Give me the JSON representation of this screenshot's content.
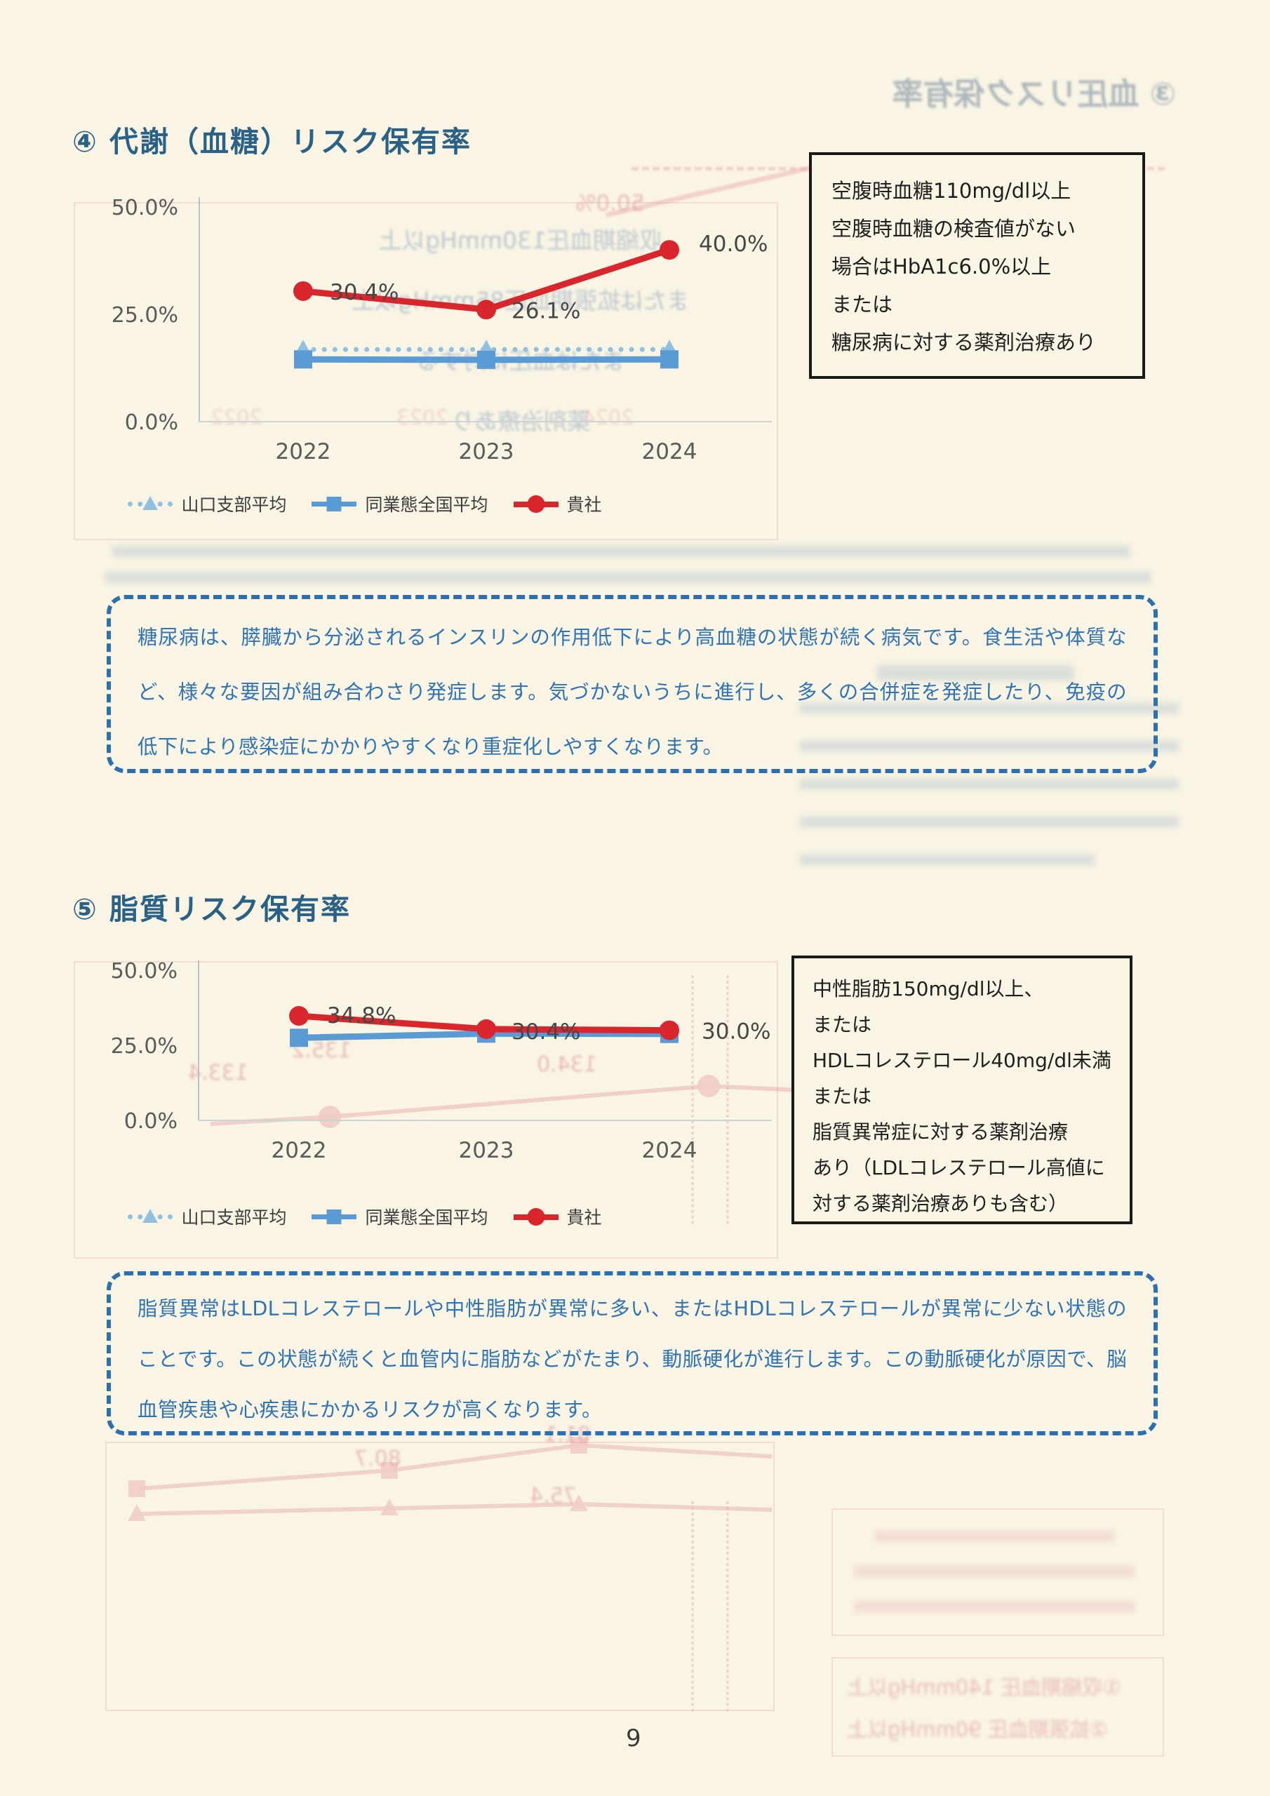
{
  "page": {
    "number": "9"
  },
  "titles": {
    "glucose": "④ 代謝（血糖）リスク保有率",
    "lipid": "⑤ 脂質リスク保有率"
  },
  "legend": {
    "items": [
      {
        "label": "山口支部平均"
      },
      {
        "label": "同業態全国平均"
      },
      {
        "label": "貴社"
      }
    ]
  },
  "criteria": {
    "glucose": {
      "lines": [
        "空腹時血糖110mg/dl以上",
        "空腹時血糖の検査値がない",
        "場合はHbA1c6.0%以上",
        "または",
        "糖尿病に対する薬剤治療あり"
      ]
    },
    "lipid": {
      "lines": [
        "中性脂肪150mg/dl以上、",
        "または",
        "HDLコレステロール40mg/dl未満",
        "または",
        "脂質異常症に対する薬剤治療",
        "あり（LDLコレステロール高値に",
        "対する薬剤治療ありも含む）"
      ]
    }
  },
  "info": {
    "glucose": "糖尿病は、膵臓から分泌されるインスリンの作用低下により高血糖の状態が続く病気です。食生活や体質など、様々な要因が組み合わさり発症します。気づかないうちに進行し、多くの合併症を発症したり、免疫の低下により感染症にかかりやすくなり重症化しやすくなります。",
    "lipid": "脂質異常はLDLコレステロールや中性脂肪が異常に多い、またはHDLコレステロールが異常に少ない状態のことです。この状態が続くと血管内に脂肪などがたまり、動脈硬化が進行します。この動脈硬化が原因で、脳血管疾患や心疾患にかかるリスクが高くなります。"
  },
  "chart_data": [
    {
      "type": "line",
      "title": "④ 代謝（血糖）リスク保有率",
      "categories": [
        "2022",
        "2023",
        "2024"
      ],
      "series": [
        {
          "name": "山口支部平均",
          "values": [
            16.8,
            16.8,
            16.8
          ],
          "estimated": true,
          "color": "#92c0e0",
          "style": "dotted",
          "marker": "triangle"
        },
        {
          "name": "同業態全国平均",
          "values": [
            14.5,
            14.4,
            14.5
          ],
          "estimated": true,
          "color": "#5b9bd5",
          "style": "solid",
          "marker": "square"
        },
        {
          "name": "貴社",
          "values": [
            30.4,
            26.1,
            40.0
          ],
          "color": "#d9262c",
          "style": "solid",
          "marker": "circle",
          "data_labels": [
            "30.4%",
            "26.1%",
            "40.0%"
          ]
        }
      ],
      "yticks": [
        {
          "label": "0.0%",
          "value": 0
        },
        {
          "label": "25.0%",
          "value": 25
        },
        {
          "label": "50.0%",
          "value": 50
        }
      ],
      "ylim": [
        0,
        50
      ],
      "xlabel": "",
      "ylabel": "",
      "grid": false,
      "legend_position": "bottom"
    },
    {
      "type": "line",
      "title": "⑤ 脂質リスク保有率",
      "categories": [
        "2022",
        "2023",
        "2024"
      ],
      "series": [
        {
          "name": "山口支部平均",
          "values": [
            27.3,
            28.7,
            28.6
          ],
          "estimated": true,
          "color": "#92c0e0",
          "style": "dotted",
          "marker": "triangle"
        },
        {
          "name": "同業態全国平均",
          "values": [
            27.5,
            28.9,
            28.8
          ],
          "estimated": true,
          "color": "#5b9bd5",
          "style": "solid",
          "marker": "square"
        },
        {
          "name": "貴社",
          "values": [
            34.8,
            30.4,
            30.0
          ],
          "color": "#d9262c",
          "style": "solid",
          "marker": "circle",
          "data_labels": [
            "34.8%",
            "30.4%",
            "30.0%"
          ]
        }
      ],
      "yticks": [
        {
          "label": "0.0%",
          "value": 0
        },
        {
          "label": "25.0%",
          "value": 25
        },
        {
          "label": "50.0%",
          "value": 50
        }
      ],
      "ylim": [
        0,
        50
      ],
      "xlabel": "",
      "ylabel": "",
      "grid": false,
      "legend_position": "bottom"
    }
  ],
  "bleed": {
    "page_title": "③ 血圧リスク保有率",
    "pct50": "50.0%",
    "bp_box_lines": [
      "収縮期血圧130mmHg以上",
      "または拡張期血圧85mmHg以上",
      "または血圧に対する",
      "薬剤治療あり"
    ],
    "years": [
      "2022",
      "2023",
      "2024"
    ],
    "chart2_values": [
      "135.2",
      "134.0",
      "133.4"
    ],
    "bottom_values": [
      "80.7",
      "81.1",
      "75.4"
    ],
    "bp_criteria": [
      "①収縮期血圧 140mmHg以上",
      "②拡張期血圧 90mmHg以上"
    ]
  }
}
